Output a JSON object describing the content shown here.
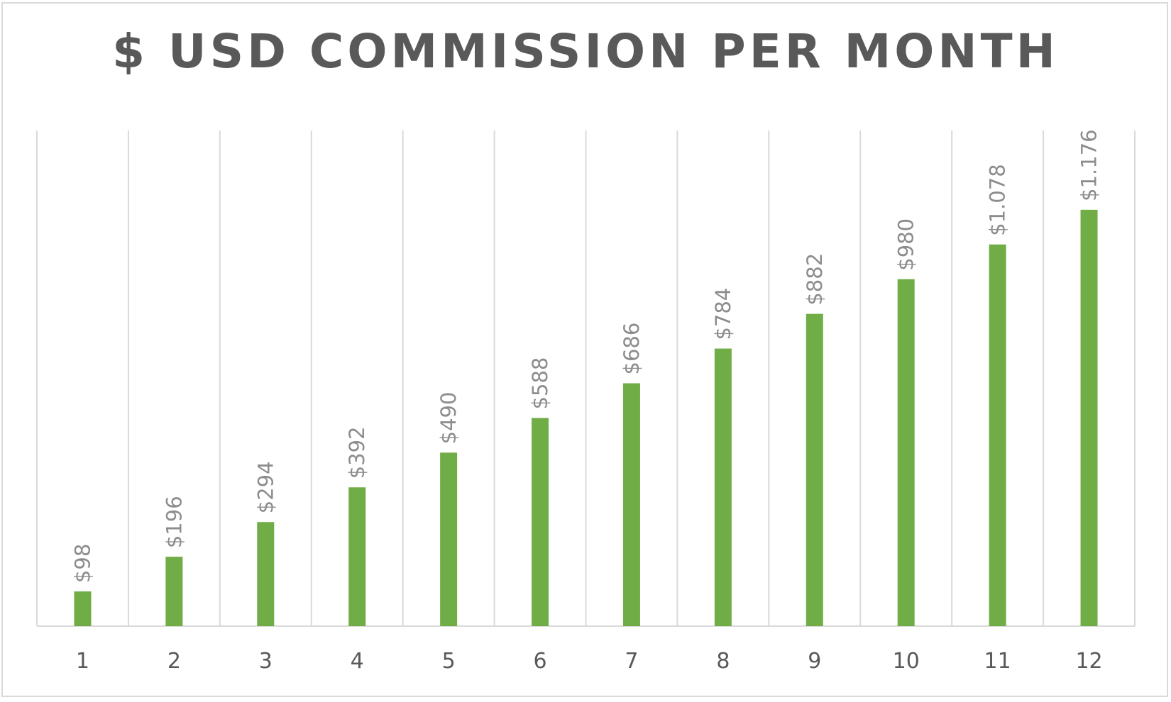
{
  "chart_data": {
    "type": "bar",
    "title": "$ USD COMMISSION PER MONTH",
    "xlabel": "",
    "ylabel": "",
    "categories": [
      "1",
      "2",
      "3",
      "4",
      "5",
      "6",
      "7",
      "8",
      "9",
      "10",
      "11",
      "12"
    ],
    "values": [
      98,
      196,
      294,
      392,
      490,
      588,
      686,
      784,
      882,
      980,
      1078,
      1176
    ],
    "data_labels": [
      "$98",
      "$196",
      "$294",
      "$392",
      "$490",
      "$588",
      "$686",
      "$784",
      "$882",
      "$980",
      "$1.078",
      "$1.176"
    ],
    "ylim": [
      0,
      1400
    ],
    "grid": "vertical",
    "legend": "none",
    "bar_color": "#70ad47",
    "grid_color": "#d9d9d9"
  }
}
